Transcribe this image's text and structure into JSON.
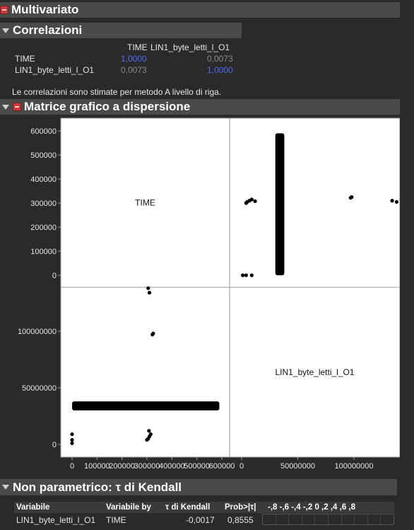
{
  "sections": {
    "multivariate": "Multivariato",
    "correlations": "Correlazioni",
    "matrix": "Matrice grafico a dispersione",
    "kendall": "Non parametrico: τ di Kendall"
  },
  "correlations": {
    "headers": [
      "TIME",
      "LIN1_byte_letti_l_O1"
    ],
    "rows": [
      {
        "label": "TIME",
        "values": [
          "1,0000",
          "0,0073"
        ]
      },
      {
        "label": "LIN1_byte_letti_l_O1",
        "values": [
          "0,0073",
          "1,0000"
        ]
      }
    ],
    "note": "Le correlazioni sono stimate per metodo A livello di riga."
  },
  "chart_data": {
    "type": "scatter",
    "variables": [
      "TIME",
      "LIN1_byte_letti_l_O1"
    ],
    "axes": {
      "TIME": {
        "ticks": [
          0,
          100000,
          200000,
          300000,
          400000,
          500000,
          600000
        ],
        "tick_labels": [
          "0",
          "100000",
          "200000",
          "300000",
          "400000",
          "500000",
          "600000"
        ],
        "range": [
          -30000,
          620000
        ]
      },
      "LIN1_byte_letti_l_O1": {
        "ticks": [
          0,
          50000000,
          100000000
        ],
        "tick_labels": [
          "0",
          "50000000",
          "100000000"
        ],
        "range": [
          -7000000,
          145000000
        ]
      }
    },
    "dense_band": {
      "byte_min": 30000000,
      "byte_max": 38000000,
      "time_min": 0,
      "time_max": 590000
    },
    "points": [
      {
        "time": 305000,
        "byte": 138000000
      },
      {
        "time": 322000,
        "byte": 97000000
      },
      {
        "time": 305000,
        "byte": 5000000
      },
      {
        "time": 310000,
        "byte": 7000000
      },
      {
        "time": 315000,
        "byte": 9000000
      },
      {
        "time": 308000,
        "byte": 12000000
      },
      {
        "time": 300000,
        "byte": 4000000
      },
      {
        "time": 0,
        "byte": 9000000
      },
      {
        "time": 0,
        "byte": 4000000
      },
      {
        "time": 0,
        "byte": 1000000
      },
      {
        "time": 325000,
        "byte": 98000000
      },
      {
        "time": 310000,
        "byte": 134000000
      }
    ]
  },
  "kendall": {
    "headers": [
      "Variabile",
      "Variabile by",
      "τ di Kendall",
      "Prob>|τ|",
      "-,8 -,6 -,4 -,2  0  ,2  ,4  ,6  ,8"
    ],
    "row": [
      "LIN1_byte_letti_l_O1",
      "TIME",
      "-0,0017",
      "0,8555"
    ]
  }
}
